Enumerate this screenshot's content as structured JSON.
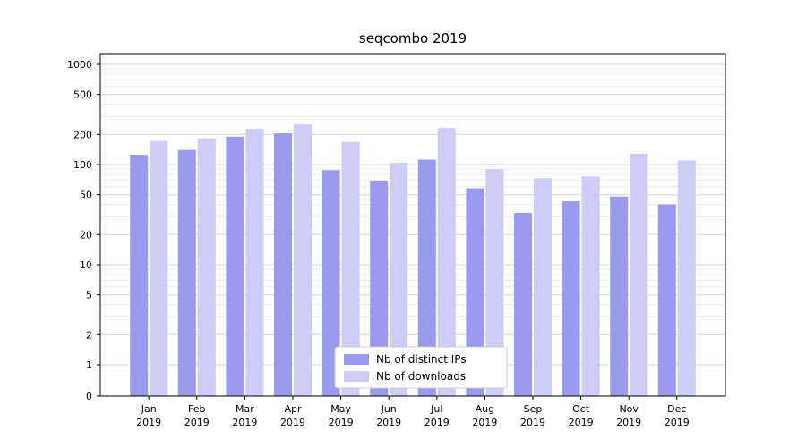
{
  "figure": {
    "title": "seqcombo 2019"
  },
  "chart_data": {
    "type": "bar",
    "scale": "symlog",
    "title": "seqcombo 2019",
    "xlabel": "",
    "ylabel": "",
    "grid": true,
    "legend_position": "lower center",
    "ylim": [
      0,
      1000
    ],
    "y_ticks": [
      0,
      1,
      2,
      5,
      10,
      20,
      50,
      100,
      200,
      500,
      1000
    ],
    "categories": [
      "Jan 2019",
      "Feb 2019",
      "Mar 2019",
      "Apr 2019",
      "May 2019",
      "Jun 2019",
      "Jul 2019",
      "Aug 2019",
      "Sep 2019",
      "Oct 2019",
      "Nov 2019",
      "Dec 2019"
    ],
    "series": [
      {
        "name": "Nb of distinct IPs",
        "color": "#9999ee",
        "values": [
          125,
          140,
          190,
          205,
          88,
          68,
          112,
          58,
          33,
          43,
          48,
          40
        ]
      },
      {
        "name": "Nb of downloads",
        "color": "#ccccf7",
        "values": [
          172,
          182,
          228,
          252,
          168,
          104,
          232,
          90,
          73,
          76,
          128,
          110
        ]
      }
    ],
    "colors": {
      "major_gridline": "#d6d6d6",
      "minor_gridline": "#ebebeb",
      "axis": "#000000",
      "legend_border": "#cccccc",
      "legend_background": "#ffffff"
    }
  }
}
